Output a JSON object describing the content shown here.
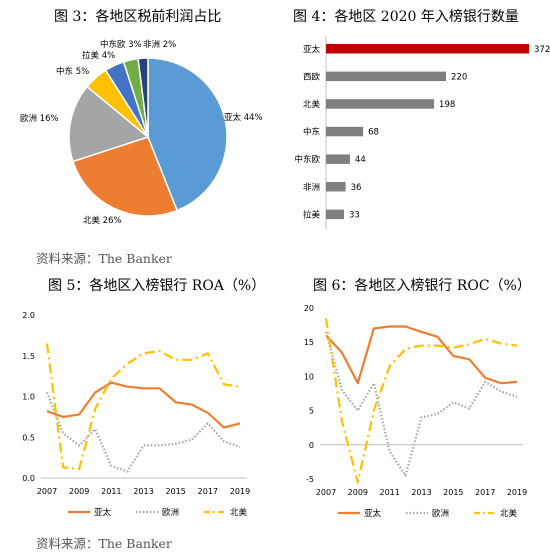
{
  "fig3": {
    "title": "图 3：各地区税前利润占比"
  },
  "fig4": {
    "title": "图 4：各地区 2020 年入榜银行数量"
  },
  "fig5": {
    "title": "图 5：各地区入榜银行 ROA（%）"
  },
  "fig6": {
    "title": "图 6：各地区入榜银行 ROC（%）"
  },
  "source1": "资料来源：The Banker",
  "source2": "资料来源：The Banker",
  "colors": {
    "asia": "#ED7D31",
    "europe": "#A5A5A5",
    "na": "#FFC000",
    "bar_highlight": "#C00000",
    "bar": "#7F7F7F"
  },
  "chart_data": [
    {
      "id": "fig3",
      "type": "pie",
      "slices": [
        {
          "label": "亚太",
          "value": 44,
          "display": "亚太 44%",
          "color": "#5B9BD5"
        },
        {
          "label": "北美",
          "value": 26,
          "display": "北美 26%",
          "color": "#ED7D31"
        },
        {
          "label": "欧洲",
          "value": 16,
          "display": "欧洲 16%",
          "color": "#A5A5A5"
        },
        {
          "label": "中东",
          "value": 5,
          "display": "中东 5%",
          "color": "#FFC000"
        },
        {
          "label": "拉美",
          "value": 4,
          "display": "拉美 4%",
          "color": "#4472C4"
        },
        {
          "label": "中东欧",
          "value": 3,
          "display": "中东欧 3%",
          "color": "#70AD47"
        },
        {
          "label": "非洲",
          "value": 2,
          "display": "非洲 2%",
          "color": "#264478"
        }
      ]
    },
    {
      "id": "fig4",
      "type": "bar",
      "orientation": "horizontal",
      "categories": [
        "亚太",
        "西欧",
        "北美",
        "中东",
        "中东欧",
        "非洲",
        "拉美"
      ],
      "values": [
        372,
        220,
        198,
        68,
        44,
        36,
        33
      ]
    },
    {
      "id": "fig5",
      "type": "line",
      "x": [
        2007,
        2008,
        2009,
        2010,
        2011,
        2012,
        2013,
        2014,
        2015,
        2016,
        2017,
        2018,
        2019
      ],
      "xticks": [
        "2007",
        "2009",
        "2011",
        "2013",
        "2015",
        "2017",
        "2019"
      ],
      "ylim": [
        0,
        2
      ],
      "yticks": [
        "0.0",
        "0.5",
        "1.0",
        "1.5",
        "2.0"
      ],
      "legend": "bottom",
      "series": [
        {
          "name": "亚太",
          "style": "solid",
          "color": "#ED7D31",
          "values": [
            0.82,
            0.75,
            0.78,
            1.05,
            1.17,
            1.12,
            1.1,
            1.1,
            0.93,
            0.9,
            0.8,
            0.62,
            0.67
          ]
        },
        {
          "name": "欧洲",
          "style": "dotted",
          "color": "#A5A5A5",
          "values": [
            1.05,
            0.55,
            0.4,
            0.6,
            0.15,
            0.08,
            0.4,
            0.4,
            0.42,
            0.47,
            0.67,
            0.45,
            0.38
          ]
        },
        {
          "name": "北美",
          "style": "dashdot",
          "color": "#FFC000",
          "values": [
            1.65,
            0.13,
            0.11,
            0.85,
            1.22,
            1.4,
            1.53,
            1.56,
            1.45,
            1.45,
            1.53,
            1.15,
            1.12
          ]
        }
      ]
    },
    {
      "id": "fig6",
      "type": "line",
      "x": [
        2007,
        2008,
        2009,
        2010,
        2011,
        2012,
        2013,
        2014,
        2015,
        2016,
        2017,
        2018,
        2019
      ],
      "xticks": [
        "2007",
        "2009",
        "2011",
        "2013",
        "2015",
        "2017",
        "2019"
      ],
      "ylim": [
        -5,
        20
      ],
      "yticks": [
        "-5",
        "0",
        "5",
        "10",
        "15",
        "20"
      ],
      "legend": "bottom",
      "series": [
        {
          "name": "亚太",
          "style": "solid",
          "color": "#ED7D31",
          "values": [
            16.0,
            13.5,
            9.0,
            17.0,
            17.3,
            17.3,
            16.5,
            15.8,
            13.0,
            12.5,
            9.8,
            9.0,
            9.2
          ]
        },
        {
          "name": "欧洲",
          "style": "dotted",
          "color": "#A5A5A5",
          "values": [
            16.5,
            8.0,
            5.0,
            9.0,
            -1.0,
            -4.5,
            4.0,
            4.5,
            6.2,
            5.3,
            9.2,
            7.8,
            7.0
          ]
        },
        {
          "name": "北美",
          "style": "dashdot",
          "color": "#FFC000",
          "values": [
            18.5,
            3.5,
            -5.5,
            5.0,
            11.5,
            14.0,
            14.5,
            14.5,
            14.2,
            14.7,
            15.5,
            14.8,
            14.5
          ]
        }
      ]
    }
  ]
}
